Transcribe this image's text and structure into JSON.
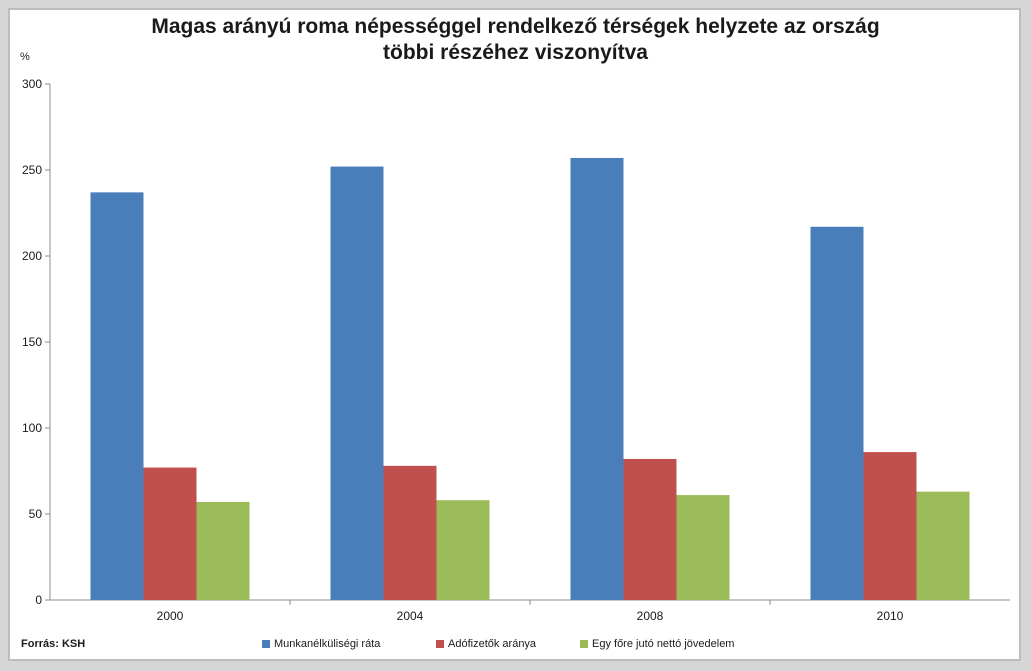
{
  "chart_data": {
    "type": "bar",
    "title": "Magas arányú roma népességgel rendelkező térségek helyzete az ország\ntöbbi részéhez viszonyítva",
    "ylabel": "%",
    "xlabel": "",
    "ylim": [
      0,
      300
    ],
    "yticks": [
      0,
      50,
      100,
      150,
      200,
      250,
      300
    ],
    "categories": [
      "2000",
      "2004",
      "2008",
      "2010"
    ],
    "grid": false,
    "legend_position": "bottom",
    "series": [
      {
        "name": "Munkanélküliségi ráta",
        "color": "#4a7ebb",
        "values": [
          237,
          252,
          257,
          217
        ]
      },
      {
        "name": "Adófizetők aránya",
        "color": "#c0504d",
        "values": [
          77,
          78,
          82,
          86
        ]
      },
      {
        "name": "Egy főre jutó nettó jövedelem",
        "color": "#9bbb59",
        "values": [
          57,
          58,
          61,
          63
        ]
      }
    ]
  },
  "source_note": "Forrás: KSH"
}
